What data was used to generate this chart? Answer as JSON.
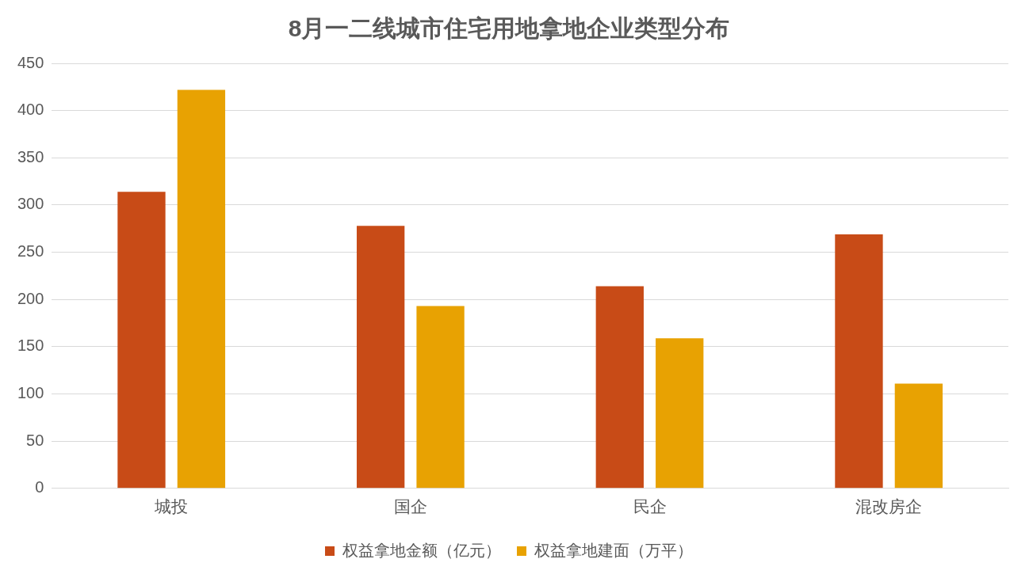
{
  "chart_data": {
    "type": "bar",
    "title": "8月一二线城市住宅用地拿地企业类型分布",
    "categories": [
      "城投",
      "国企",
      "民企",
      "混改房企"
    ],
    "series": [
      {
        "name": "权益拿地金额（亿元）",
        "color": "#c84b17",
        "values": [
          314,
          278,
          214,
          269
        ]
      },
      {
        "name": "权益拿地建面（万平）",
        "color": "#e8a202",
        "values": [
          422,
          193,
          159,
          111
        ]
      }
    ],
    "ylim": [
      0,
      450
    ],
    "yticks": [
      0,
      50,
      100,
      150,
      200,
      250,
      300,
      350,
      400,
      450
    ],
    "grid": "y",
    "legend": "bottom"
  }
}
